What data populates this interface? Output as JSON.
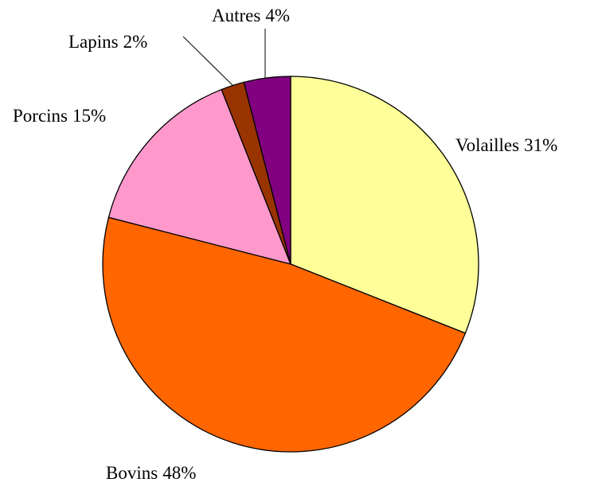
{
  "chart_data": {
    "type": "pie",
    "categories": [
      "Volailles",
      "Bovins",
      "Porcins",
      "Lapins",
      "Autres"
    ],
    "values": [
      31,
      48,
      15,
      2,
      4
    ],
    "value_labels": [
      "31%",
      "48%",
      "15%",
      "2%",
      "4%"
    ],
    "colors": [
      "#ffff99",
      "#ff6600",
      "#ff99cc",
      "#993300",
      "#800080"
    ]
  }
}
